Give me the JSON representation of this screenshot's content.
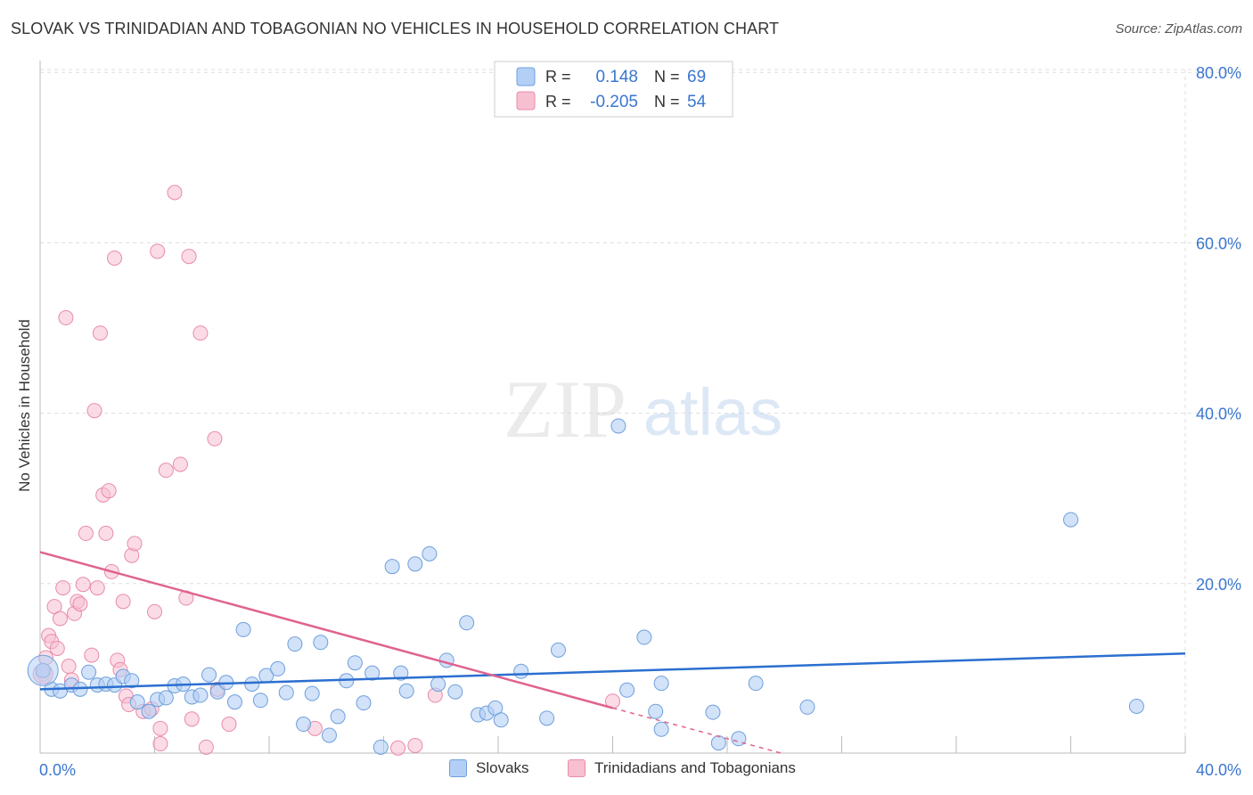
{
  "title": "SLOVAK VS TRINIDADIAN AND TOBAGONIAN NO VEHICLES IN HOUSEHOLD CORRELATION CHART",
  "source": "Source: ZipAtlas.com",
  "watermark": {
    "zip": "ZIP",
    "atlas": "atlas"
  },
  "colors": {
    "blue_fill": "#b3cff5",
    "blue_stroke": "#6f9fdc",
    "blue_line": "#2c6fcf",
    "pink_fill": "#f7c0d1",
    "pink_stroke": "#e88ba9",
    "pink_line": "#e0638f",
    "value_text": "#3a76d0",
    "grid": "#dddddd"
  },
  "legend_top": {
    "rows": [
      {
        "r_label": "R =",
        "r_value": "0.148",
        "n_label": "N =",
        "n_value": "69",
        "series": "blue"
      },
      {
        "r_label": "R =",
        "r_value": "-0.205",
        "n_label": "N =",
        "n_value": "54",
        "series": "pink"
      }
    ]
  },
  "legend_bottom": {
    "items": [
      {
        "label": "Slovaks",
        "series": "blue"
      },
      {
        "label": "Trinidadians and Tobagonians",
        "series": "pink"
      }
    ]
  },
  "chart_data": {
    "type": "scatter",
    "xlabel": "",
    "ylabel": "No Vehicles in Household",
    "xlim": [
      0,
      40
    ],
    "ylim": [
      0,
      82
    ],
    "x_tick_labels": [
      "0.0%",
      "40.0%"
    ],
    "y_ticks": [
      20,
      40,
      60,
      80
    ],
    "y_tick_labels": [
      "20.0%",
      "40.0%",
      "60.0%",
      "80.0%"
    ],
    "grid": true,
    "series": [
      {
        "name": "Slovaks",
        "color": "blue",
        "points": [
          [
            0.1,
            9.8
          ],
          [
            0.4,
            7.6
          ],
          [
            0.7,
            7.4
          ],
          [
            1.1,
            8.1
          ],
          [
            1.4,
            7.6
          ],
          [
            1.7,
            9.6
          ],
          [
            2.0,
            8.1
          ],
          [
            2.3,
            8.2
          ],
          [
            2.6,
            8.1
          ],
          [
            2.9,
            9.1
          ],
          [
            3.2,
            8.6
          ],
          [
            3.4,
            6.1
          ],
          [
            3.8,
            5.0
          ],
          [
            4.1,
            6.4
          ],
          [
            4.4,
            6.6
          ],
          [
            4.7,
            8.0
          ],
          [
            5.0,
            8.2
          ],
          [
            5.3,
            6.7
          ],
          [
            5.6,
            6.9
          ],
          [
            5.9,
            9.3
          ],
          [
            6.2,
            7.3
          ],
          [
            6.5,
            8.4
          ],
          [
            6.8,
            6.1
          ],
          [
            7.1,
            14.6
          ],
          [
            7.4,
            8.2
          ],
          [
            7.7,
            6.3
          ],
          [
            7.9,
            9.2
          ],
          [
            8.3,
            10.0
          ],
          [
            8.6,
            7.2
          ],
          [
            8.9,
            12.9
          ],
          [
            9.2,
            3.5
          ],
          [
            9.5,
            7.1
          ],
          [
            9.8,
            13.1
          ],
          [
            10.1,
            2.2
          ],
          [
            10.4,
            4.4
          ],
          [
            10.7,
            8.6
          ],
          [
            11.0,
            10.7
          ],
          [
            11.3,
            6.0
          ],
          [
            11.6,
            9.5
          ],
          [
            11.9,
            0.8
          ],
          [
            12.3,
            22.0
          ],
          [
            12.6,
            9.5
          ],
          [
            12.8,
            7.4
          ],
          [
            13.1,
            22.3
          ],
          [
            13.6,
            23.5
          ],
          [
            13.9,
            8.2
          ],
          [
            14.2,
            11.0
          ],
          [
            14.9,
            15.4
          ],
          [
            14.5,
            7.3
          ],
          [
            15.3,
            4.6
          ],
          [
            15.6,
            4.8
          ],
          [
            15.9,
            5.4
          ],
          [
            16.1,
            4.0
          ],
          [
            16.8,
            9.7
          ],
          [
            17.7,
            4.2
          ],
          [
            18.1,
            12.2
          ],
          [
            20.2,
            38.5
          ],
          [
            20.5,
            7.5
          ],
          [
            21.1,
            13.7
          ],
          [
            21.5,
            5.0
          ],
          [
            21.7,
            2.9
          ],
          [
            21.7,
            8.3
          ],
          [
            23.5,
            4.9
          ],
          [
            23.7,
            1.3
          ],
          [
            24.4,
            1.8
          ],
          [
            25.0,
            8.3
          ],
          [
            26.8,
            5.5
          ],
          [
            36.0,
            27.5
          ],
          [
            38.3,
            5.6
          ]
        ],
        "trend": [
          [
            0,
            7.6
          ],
          [
            40,
            11.8
          ]
        ]
      },
      {
        "name": "Trinidadians and Tobagonians",
        "color": "pink",
        "points": [
          [
            0.1,
            9.4
          ],
          [
            0.2,
            11.3
          ],
          [
            0.3,
            13.9
          ],
          [
            0.4,
            13.2
          ],
          [
            0.5,
            17.3
          ],
          [
            0.6,
            12.4
          ],
          [
            0.7,
            15.9
          ],
          [
            0.8,
            19.5
          ],
          [
            0.9,
            51.2
          ],
          [
            1.0,
            10.3
          ],
          [
            1.1,
            8.7
          ],
          [
            1.2,
            16.5
          ],
          [
            1.3,
            17.9
          ],
          [
            1.4,
            17.6
          ],
          [
            1.5,
            19.9
          ],
          [
            1.6,
            25.9
          ],
          [
            1.8,
            11.6
          ],
          [
            1.9,
            40.3
          ],
          [
            2.0,
            19.5
          ],
          [
            2.1,
            49.4
          ],
          [
            2.2,
            30.4
          ],
          [
            2.3,
            25.9
          ],
          [
            2.4,
            30.9
          ],
          [
            2.5,
            21.4
          ],
          [
            2.6,
            58.2
          ],
          [
            2.7,
            11.0
          ],
          [
            2.8,
            9.9
          ],
          [
            2.9,
            17.9
          ],
          [
            3.0,
            6.8
          ],
          [
            3.1,
            5.8
          ],
          [
            3.2,
            23.3
          ],
          [
            3.3,
            24.7
          ],
          [
            3.6,
            5.0
          ],
          [
            3.9,
            5.3
          ],
          [
            4.0,
            16.7
          ],
          [
            4.1,
            59.0
          ],
          [
            4.2,
            3.0
          ],
          [
            4.2,
            1.2
          ],
          [
            4.4,
            33.3
          ],
          [
            4.7,
            65.9
          ],
          [
            4.9,
            34.0
          ],
          [
            5.1,
            18.3
          ],
          [
            5.2,
            58.4
          ],
          [
            5.3,
            4.1
          ],
          [
            5.6,
            49.4
          ],
          [
            5.8,
            0.8
          ],
          [
            6.1,
            37.0
          ],
          [
            6.2,
            7.6
          ],
          [
            6.6,
            3.5
          ],
          [
            9.6,
            3.0
          ],
          [
            12.5,
            0.7
          ],
          [
            13.1,
            1.0
          ],
          [
            13.8,
            6.9
          ],
          [
            20.0,
            6.2
          ]
        ],
        "trend": [
          [
            0,
            23.7
          ],
          [
            20,
            5.4
          ]
        ],
        "trend_dashed": [
          [
            20,
            5.4
          ],
          [
            26,
            0
          ]
        ]
      }
    ]
  }
}
